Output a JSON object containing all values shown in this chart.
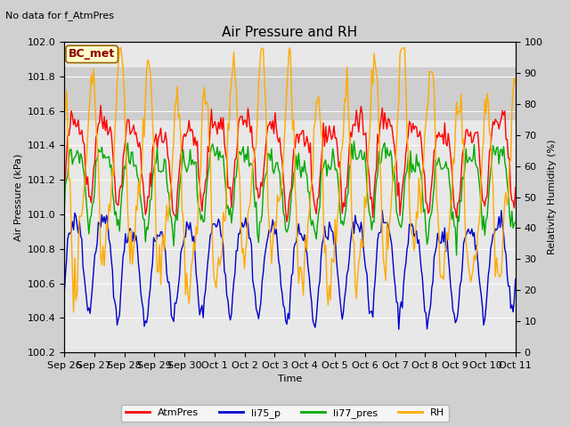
{
  "title": "Air Pressure and RH",
  "subtitle": "No data for f_AtmPres",
  "xlabel": "Time",
  "ylabel_left": "Air Pressure (kPa)",
  "ylabel_right": "Relativity Humidity (%)",
  "annotation": "BC_met",
  "ylim_left": [
    100.2,
    102.0
  ],
  "ylim_right": [
    0,
    100
  ],
  "yticks_left": [
    100.2,
    100.4,
    100.6,
    100.8,
    101.0,
    101.2,
    101.4,
    101.6,
    101.8,
    102.0
  ],
  "yticks_right": [
    0,
    10,
    20,
    30,
    40,
    50,
    60,
    70,
    80,
    90,
    100
  ],
  "xtick_labels": [
    "Sep 26",
    "Sep 27",
    "Sep 28",
    "Sep 29",
    "Sep 30",
    "Oct 1",
    "Oct 2",
    "Oct 3",
    "Oct 4",
    "Oct 5",
    "Oct 6",
    "Oct 7",
    "Oct 8",
    "Oct 9",
    "Oct 10",
    "Oct 11"
  ],
  "n_xticks": 16,
  "colors": {
    "AtmPres": "#ff0000",
    "li75_p": "#0000cc",
    "li77_pres": "#00aa00",
    "RH": "#ffaa00"
  },
  "legend_labels": [
    "AtmPres",
    "li75_p",
    "li77_pres",
    "RH"
  ],
  "fig_bg_color": "#d0d0d0",
  "plot_bg_color": "#e8e8e8",
  "band_color": "#c8c8c8",
  "grid_color": "#ffffff",
  "title_fontsize": 11,
  "label_fontsize": 8,
  "tick_fontsize": 8,
  "annotation_fontsize": 9,
  "subtitle_fontsize": 8,
  "legend_fontsize": 8,
  "linewidth": 1.0
}
